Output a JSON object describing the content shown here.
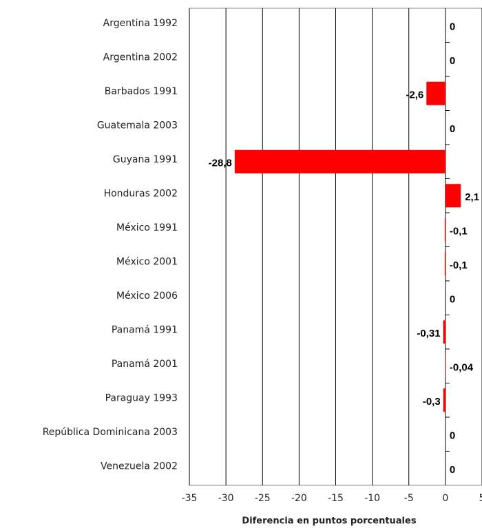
{
  "chart_data": {
    "type": "bar",
    "orientation": "horizontal",
    "x_label": "Diferencia en puntos porcentuales",
    "categories": [
      "Argentina 1992",
      "Argentina 2002",
      "Barbados 1991",
      "Guatemala 2003",
      "Guyana 1991",
      "Honduras 2002",
      "México 1991",
      "México 2001",
      "México 2006",
      "Panamá 1991",
      "Panamá 2001",
      "Paraguay 1993",
      "República Dominicana 2003",
      "Venezuela 2002"
    ],
    "values": [
      0,
      0,
      -2.6,
      0,
      -28.8,
      2.1,
      -0.1,
      -0.1,
      0,
      -0.31,
      -0.04,
      -0.3,
      0,
      0
    ],
    "value_labels": [
      "0",
      "0",
      "-2,6",
      "0",
      "-28,8",
      "2,1",
      "-0,1",
      "-0,1",
      "0",
      "-0,31",
      "-0,04",
      "-0,3",
      "0",
      "0"
    ],
    "color": "#ff0000",
    "xlim": [
      -35,
      5
    ],
    "xticks": [
      -35,
      -30,
      -25,
      -20,
      -15,
      -10,
      -5,
      0,
      5
    ],
    "grid": true
  }
}
